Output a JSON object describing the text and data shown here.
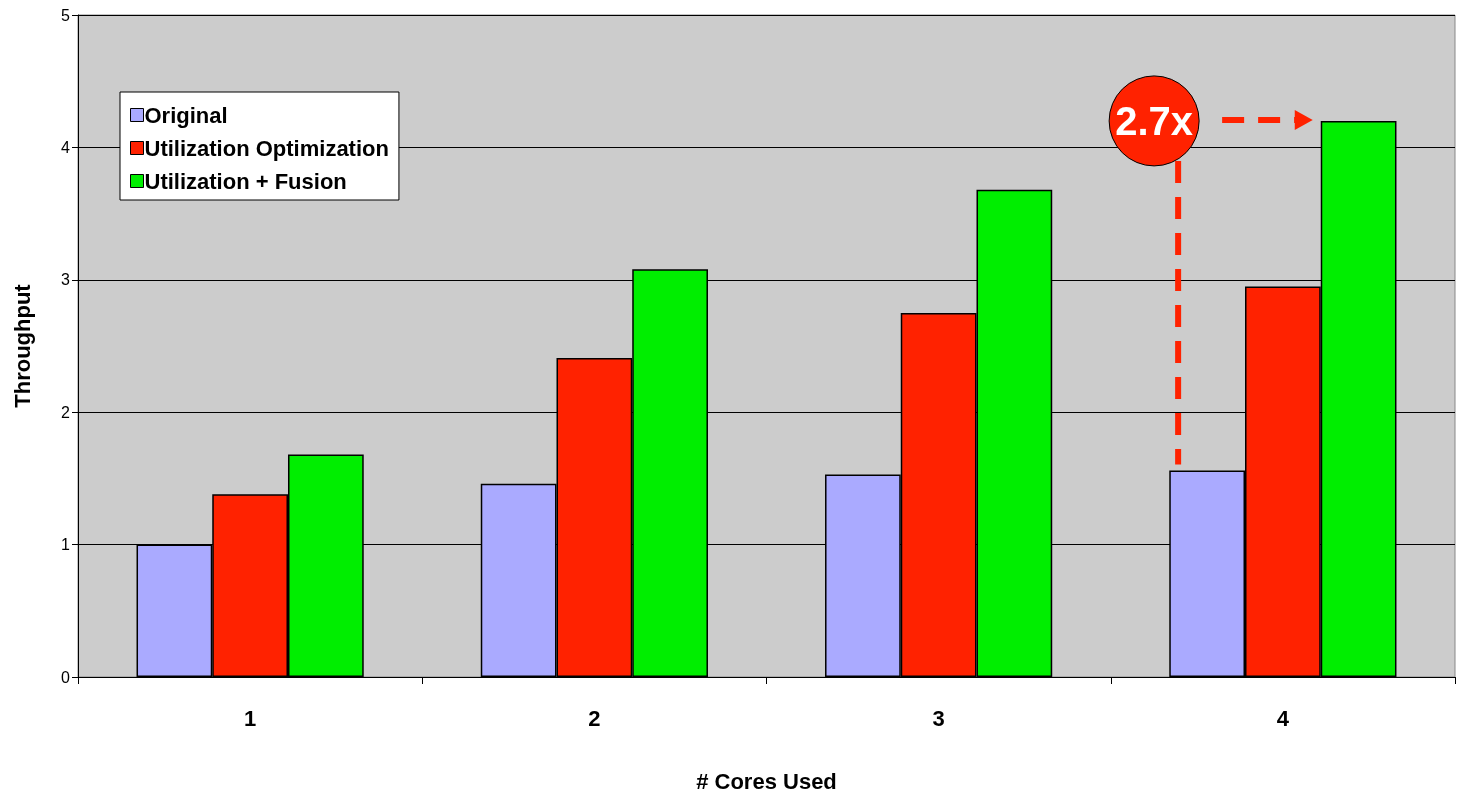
{
  "chart_data": {
    "type": "bar",
    "xlabel": "# Cores Used",
    "ylabel": "Throughput",
    "categories": [
      "1",
      "2",
      "3",
      "4"
    ],
    "series": [
      {
        "name": "Original",
        "color": "#aaaaff",
        "values": [
          1.0,
          1.46,
          1.53,
          1.56
        ]
      },
      {
        "name": "Utilization Optimization",
        "color": "#ff2200",
        "values": [
          1.38,
          2.41,
          2.75,
          2.95
        ]
      },
      {
        "name": "Utilization + Fusion",
        "color": "#00ee00",
        "values": [
          1.68,
          3.08,
          3.68,
          4.2
        ]
      }
    ],
    "ylim": [
      0,
      5
    ],
    "yticks": [
      0,
      1,
      2,
      3,
      4,
      5
    ],
    "grid": "y",
    "legend": "top left",
    "annotations": [
      "2.7x"
    ]
  }
}
